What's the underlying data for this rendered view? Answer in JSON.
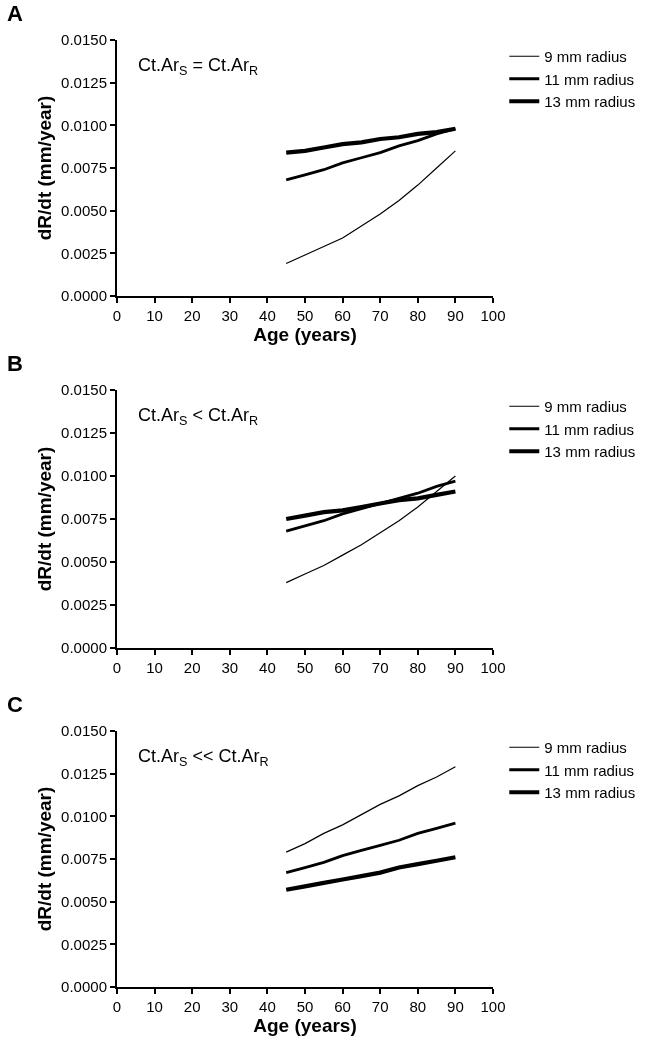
{
  "chart_data": [
    {
      "type": "line",
      "title": "A",
      "xlabel": "Age (years)",
      "ylabel": "dR/dt (mm/year)",
      "annotations": [
        "Ct.Ar$_{S}$ = Ct.Ar$_{R}$"
      ],
      "x": [
        45,
        50,
        55,
        60,
        65,
        70,
        75,
        80,
        85,
        90
      ],
      "series": [
        {
          "name": "9 mm radius",
          "color": "#000000",
          "values": [
            0.0019,
            0.0024,
            0.0029,
            0.0034,
            0.0041,
            0.0048,
            0.0056,
            0.0065,
            0.0075,
            0.0085
          ]
        },
        {
          "name": "11 mm radius",
          "color": "#000000",
          "values": [
            0.0068,
            0.0071,
            0.0074,
            0.0078,
            0.0081,
            0.0084,
            0.0088,
            0.0091,
            0.0095,
            0.0098
          ]
        },
        {
          "name": "13 mm radius",
          "color": "#000000",
          "values": [
            0.0084,
            0.0085,
            0.0087,
            0.0089,
            0.009,
            0.0092,
            0.0093,
            0.0095,
            0.0096,
            0.0098
          ]
        }
      ],
      "xlim": [
        0,
        100
      ],
      "xticks": [
        0,
        10,
        20,
        30,
        40,
        50,
        60,
        70,
        80,
        90,
        100
      ],
      "ylim": [
        0,
        0.015
      ],
      "yticks": [
        {
          "value": 0,
          "label": "0.0000"
        },
        {
          "value": 0.0025,
          "label": "0.0025"
        },
        {
          "value": 0.005,
          "label": "0.0050"
        },
        {
          "value": 0.0075,
          "label": "0.0075"
        },
        {
          "value": 0.01,
          "label": "0.0100"
        },
        {
          "value": 0.0125,
          "label": "0.0125"
        },
        {
          "value": 0.015,
          "label": "0.0150"
        }
      ],
      "legend": "top right",
      "marker": "none",
      "line_style": "solid"
    },
    {
      "type": "line",
      "title": "B",
      "ylabel": "dR/dt (mm/year)",
      "annotations": [
        "Ct.Ar$_{S}$ < Ct.Ar$_{R}$"
      ],
      "x": [
        45,
        50,
        55,
        60,
        65,
        70,
        75,
        80,
        85,
        90
      ],
      "series": [
        {
          "name": "9 mm radius",
          "color": "#000000",
          "values": [
            0.0038,
            0.0043,
            0.0048,
            0.0054,
            0.006,
            0.0067,
            0.0074,
            0.0082,
            0.0091,
            0.01
          ]
        },
        {
          "name": "11 mm radius",
          "color": "#000000",
          "values": [
            0.0068,
            0.0071,
            0.0074,
            0.0078,
            0.0081,
            0.0084,
            0.0087,
            0.009,
            0.0094,
            0.0097
          ]
        },
        {
          "name": "13 mm radius",
          "color": "#000000",
          "values": [
            0.0075,
            0.0077,
            0.0079,
            0.008,
            0.0082,
            0.0084,
            0.0086,
            0.0087,
            0.0089,
            0.0091
          ]
        }
      ],
      "xlim": [
        0,
        100
      ],
      "xticks": [
        0,
        10,
        20,
        30,
        40,
        50,
        60,
        70,
        80,
        90,
        100
      ],
      "ylim": [
        0,
        0.015
      ],
      "yticks": [
        {
          "value": 0,
          "label": "0.0000"
        },
        {
          "value": 0.0025,
          "label": "0.0025"
        },
        {
          "value": 0.005,
          "label": "0.0050"
        },
        {
          "value": 0.0075,
          "label": "0.0075"
        },
        {
          "value": 0.01,
          "label": "0.0100"
        },
        {
          "value": 0.0125,
          "label": "0.0125"
        },
        {
          "value": 0.015,
          "label": "0.0150"
        }
      ],
      "legend": "top right",
      "marker": "none",
      "line_style": "solid"
    },
    {
      "type": "line",
      "title": "C",
      "xlabel": "Age (years)",
      "ylabel": "dR/dt (mm/year)",
      "annotations": [
        "Ct.Ar$_{S}$ << Ct.Ar$_{R}$"
      ],
      "x": [
        45,
        50,
        55,
        60,
        65,
        70,
        75,
        80,
        85,
        90
      ],
      "series": [
        {
          "name": "9 mm radius",
          "color": "#000000",
          "values": [
            0.0079,
            0.0084,
            0.009,
            0.0095,
            0.0101,
            0.0107,
            0.0112,
            0.0118,
            0.0123,
            0.0129
          ]
        },
        {
          "name": "11 mm radius",
          "color": "#000000",
          "values": [
            0.0067,
            0.007,
            0.0073,
            0.0077,
            0.008,
            0.0083,
            0.0086,
            0.009,
            0.0093,
            0.0096
          ]
        },
        {
          "name": "13 mm radius",
          "color": "#000000",
          "values": [
            0.0057,
            0.0059,
            0.0061,
            0.0063,
            0.0065,
            0.0067,
            0.007,
            0.0072,
            0.0074,
            0.0076
          ]
        }
      ],
      "xlim": [
        0,
        100
      ],
      "xticks": [
        0,
        10,
        20,
        30,
        40,
        50,
        60,
        70,
        80,
        90,
        100
      ],
      "ylim": [
        0,
        0.015
      ],
      "yticks": [
        {
          "value": 0,
          "label": "0.0000"
        },
        {
          "value": 0.0025,
          "label": "0.0025"
        },
        {
          "value": 0.005,
          "label": "0.0050"
        },
        {
          "value": 0.0075,
          "label": "0.0075"
        },
        {
          "value": 0.01,
          "label": "0.0100"
        },
        {
          "value": 0.0125,
          "label": "0.0125"
        },
        {
          "value": 0.015,
          "label": "0.0150"
        }
      ],
      "legend": "top right",
      "marker": "none",
      "line_style": "solid"
    }
  ]
}
